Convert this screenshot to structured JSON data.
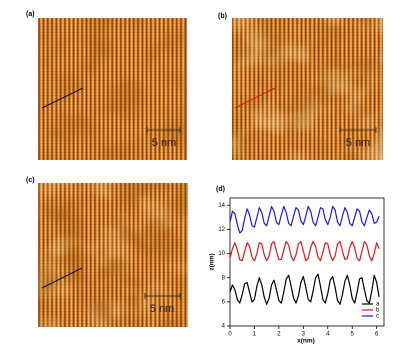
{
  "images": [
    {
      "label": "(a)",
      "scale_bar": "5 nm"
    },
    {
      "label": "(b)",
      "scale_bar": "5 nm"
    },
    {
      "label": "(c)",
      "scale_bar": "5 nm"
    }
  ],
  "chart_data": {
    "type": "line",
    "panel_label": "(d)",
    "xlabel": "x(nm)",
    "ylabel": "z(nm)",
    "x": [
      0,
      0.1,
      0.2,
      0.3,
      0.4,
      0.5,
      0.6,
      0.7,
      0.8,
      0.9,
      1,
      1.1,
      1.2,
      1.3,
      1.4,
      1.5,
      1.6,
      1.7,
      1.8,
      1.9,
      2,
      2.1,
      2.2,
      2.3,
      2.4,
      2.5,
      2.6,
      2.7,
      2.8,
      2.9,
      3,
      3.1,
      3.2,
      3.3,
      3.4,
      3.5,
      3.6,
      3.7,
      3.8,
      3.9,
      4,
      4.1,
      4.2,
      4.3,
      4.4,
      4.5,
      4.6,
      4.7,
      4.8,
      4.9,
      5,
      5.1,
      5.2,
      5.3,
      5.4,
      5.5,
      5.6,
      5.7,
      5.8,
      5.9,
      6,
      6.1
    ],
    "series": [
      {
        "name": "a",
        "color": "#000000",
        "values": [
          6.8,
          7.4,
          7.0,
          6.2,
          5.9,
          6.6,
          7.5,
          7.6,
          6.8,
          6.0,
          6.2,
          7.3,
          8.0,
          7.4,
          6.4,
          5.8,
          6.3,
          7.4,
          7.8,
          7.0,
          6.1,
          5.9,
          6.8,
          7.9,
          8.2,
          7.3,
          6.3,
          5.9,
          6.5,
          7.6,
          8.1,
          7.2,
          6.2,
          6.0,
          6.9,
          8.0,
          8.3,
          7.3,
          6.2,
          5.9,
          6.7,
          7.8,
          8.1,
          7.2,
          6.1,
          5.8,
          6.6,
          7.7,
          8.2,
          7.4,
          6.3,
          5.9,
          6.8,
          7.9,
          8.0,
          7.0,
          6.1,
          5.9,
          6.9,
          8.2,
          7.6,
          6.4
        ]
      },
      {
        "name": "b",
        "color": "#e8141b",
        "values": [
          9.6,
          10.4,
          10.9,
          10.3,
          9.5,
          9.4,
          10.2,
          10.9,
          10.6,
          9.7,
          9.4,
          10.0,
          10.9,
          10.8,
          9.9,
          9.4,
          9.8,
          10.8,
          11.0,
          10.2,
          9.5,
          9.5,
          10.3,
          11.0,
          10.7,
          9.8,
          9.4,
          9.9,
          10.8,
          11.0,
          10.2,
          9.4,
          9.6,
          10.5,
          11.0,
          10.6,
          9.7,
          9.4,
          10.1,
          10.9,
          10.8,
          9.9,
          9.4,
          9.8,
          10.8,
          11.0,
          10.2,
          9.5,
          9.6,
          10.5,
          11.0,
          10.5,
          9.6,
          9.4,
          10.2,
          11.0,
          10.7,
          9.8,
          9.4,
          10.0,
          10.9,
          10.4
        ]
      },
      {
        "name": "c",
        "color": "#1a1aee",
        "values": [
          12.6,
          13.5,
          13.3,
          12.4,
          11.7,
          11.9,
          12.9,
          13.7,
          13.2,
          12.3,
          12.2,
          13.0,
          13.8,
          13.4,
          12.5,
          12.3,
          13.1,
          13.9,
          13.5,
          12.6,
          12.4,
          13.2,
          13.9,
          13.4,
          12.5,
          12.3,
          13.1,
          13.8,
          13.6,
          12.7,
          12.4,
          13.1,
          13.9,
          13.5,
          12.6,
          12.3,
          13.0,
          13.8,
          13.7,
          12.8,
          12.4,
          13.0,
          13.9,
          13.6,
          12.6,
          12.3,
          13.1,
          13.8,
          13.4,
          12.5,
          12.3,
          13.0,
          13.7,
          13.5,
          12.6,
          12.3,
          13.0,
          13.6,
          13.3,
          12.5,
          12.6,
          13.1
        ]
      }
    ],
    "xlim": [
      0,
      6.3
    ],
    "ylim": [
      4,
      14.6
    ],
    "xticks": [
      0,
      1,
      2,
      3,
      4,
      5,
      6
    ],
    "yticks": [
      4,
      6,
      8,
      10,
      12,
      14
    ],
    "legend": "lower right"
  }
}
